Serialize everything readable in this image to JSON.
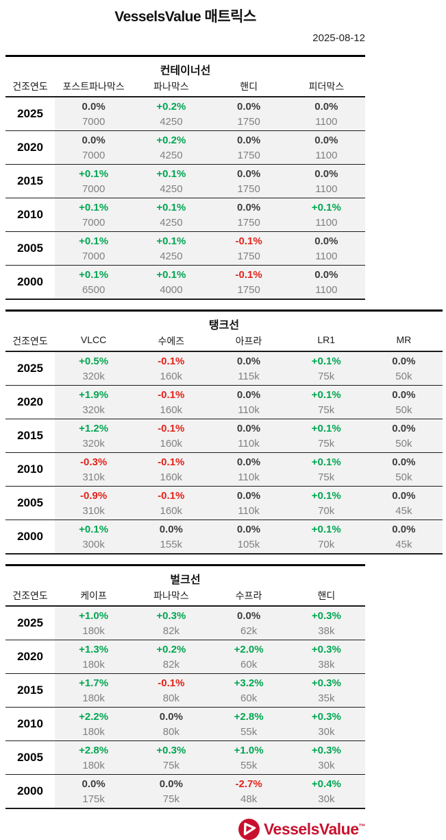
{
  "page": {
    "title": "VesselsValue 매트릭스",
    "date": "2025-08-12"
  },
  "colors": {
    "positive": "#00a651",
    "negative": "#e2231a",
    "neutral": "#3c3c3c",
    "value_gray": "#808080",
    "brand_red": "#c8102e",
    "cell_background": "#f2f2f2"
  },
  "year_column_header": "건조연도",
  "tables": [
    {
      "id": "container",
      "title": "컨테이너선",
      "columns": [
        "포스트파나막스",
        "파나막스",
        "핸디",
        "피더막스"
      ],
      "rows": [
        {
          "year": "2025",
          "cells": [
            {
              "pct": "0.0%",
              "value": "7000"
            },
            {
              "pct": "+0.2%",
              "value": "4250"
            },
            {
              "pct": "0.0%",
              "value": "1750"
            },
            {
              "pct": "0.0%",
              "value": "1100"
            }
          ]
        },
        {
          "year": "2020",
          "cells": [
            {
              "pct": "0.0%",
              "value": "7000"
            },
            {
              "pct": "+0.2%",
              "value": "4250"
            },
            {
              "pct": "0.0%",
              "value": "1750"
            },
            {
              "pct": "0.0%",
              "value": "1100"
            }
          ]
        },
        {
          "year": "2015",
          "cells": [
            {
              "pct": "+0.1%",
              "value": "7000"
            },
            {
              "pct": "+0.1%",
              "value": "4250"
            },
            {
              "pct": "0.0%",
              "value": "1750"
            },
            {
              "pct": "0.0%",
              "value": "1100"
            }
          ]
        },
        {
          "year": "2010",
          "cells": [
            {
              "pct": "+0.1%",
              "value": "7000"
            },
            {
              "pct": "+0.1%",
              "value": "4250"
            },
            {
              "pct": "0.0%",
              "value": "1750"
            },
            {
              "pct": "+0.1%",
              "value": "1100"
            }
          ]
        },
        {
          "year": "2005",
          "cells": [
            {
              "pct": "+0.1%",
              "value": "7000"
            },
            {
              "pct": "+0.1%",
              "value": "4250"
            },
            {
              "pct": "-0.1%",
              "value": "1750"
            },
            {
              "pct": "0.0%",
              "value": "1100"
            }
          ]
        },
        {
          "year": "2000",
          "cells": [
            {
              "pct": "+0.1%",
              "value": "6500"
            },
            {
              "pct": "+0.1%",
              "value": "4000"
            },
            {
              "pct": "-0.1%",
              "value": "1750"
            },
            {
              "pct": "0.0%",
              "value": "1100"
            }
          ]
        }
      ]
    },
    {
      "id": "tanker",
      "title": "탱크선",
      "columns": [
        "VLCC",
        "수에즈",
        "아프라",
        "LR1",
        "MR"
      ],
      "rows": [
        {
          "year": "2025",
          "cells": [
            {
              "pct": "+0.5%",
              "value": "320k"
            },
            {
              "pct": "-0.1%",
              "value": "160k"
            },
            {
              "pct": "0.0%",
              "value": "115k"
            },
            {
              "pct": "+0.1%",
              "value": "75k"
            },
            {
              "pct": "0.0%",
              "value": "50k"
            }
          ]
        },
        {
          "year": "2020",
          "cells": [
            {
              "pct": "+1.9%",
              "value": "320k"
            },
            {
              "pct": "-0.1%",
              "value": "160k"
            },
            {
              "pct": "0.0%",
              "value": "110k"
            },
            {
              "pct": "+0.1%",
              "value": "75k"
            },
            {
              "pct": "0.0%",
              "value": "50k"
            }
          ]
        },
        {
          "year": "2015",
          "cells": [
            {
              "pct": "+1.2%",
              "value": "320k"
            },
            {
              "pct": "-0.1%",
              "value": "160k"
            },
            {
              "pct": "0.0%",
              "value": "110k"
            },
            {
              "pct": "+0.1%",
              "value": "75k"
            },
            {
              "pct": "0.0%",
              "value": "50k"
            }
          ]
        },
        {
          "year": "2010",
          "cells": [
            {
              "pct": "-0.3%",
              "value": "310k"
            },
            {
              "pct": "-0.1%",
              "value": "160k"
            },
            {
              "pct": "0.0%",
              "value": "110k"
            },
            {
              "pct": "+0.1%",
              "value": "75k"
            },
            {
              "pct": "0.0%",
              "value": "50k"
            }
          ]
        },
        {
          "year": "2005",
          "cells": [
            {
              "pct": "-0.9%",
              "value": "310k"
            },
            {
              "pct": "-0.1%",
              "value": "160k"
            },
            {
              "pct": "0.0%",
              "value": "110k"
            },
            {
              "pct": "+0.1%",
              "value": "70k"
            },
            {
              "pct": "0.0%",
              "value": "45k"
            }
          ]
        },
        {
          "year": "2000",
          "cells": [
            {
              "pct": "+0.1%",
              "value": "300k"
            },
            {
              "pct": "0.0%",
              "value": "155k"
            },
            {
              "pct": "0.0%",
              "value": "105k"
            },
            {
              "pct": "+0.1%",
              "value": "70k"
            },
            {
              "pct": "0.0%",
              "value": "45k"
            }
          ]
        }
      ]
    },
    {
      "id": "bulker",
      "title": "벌크선",
      "columns": [
        "케이프",
        "파나막스",
        "수프라",
        "핸디"
      ],
      "rows": [
        {
          "year": "2025",
          "cells": [
            {
              "pct": "+1.0%",
              "value": "180k"
            },
            {
              "pct": "+0.3%",
              "value": "82k"
            },
            {
              "pct": "0.0%",
              "value": "62k"
            },
            {
              "pct": "+0.3%",
              "value": "38k"
            }
          ]
        },
        {
          "year": "2020",
          "cells": [
            {
              "pct": "+1.3%",
              "value": "180k"
            },
            {
              "pct": "+0.2%",
              "value": "82k"
            },
            {
              "pct": "+2.0%",
              "value": "60k"
            },
            {
              "pct": "+0.3%",
              "value": "38k"
            }
          ]
        },
        {
          "year": "2015",
          "cells": [
            {
              "pct": "+1.7%",
              "value": "180k"
            },
            {
              "pct": "-0.1%",
              "value": "80k"
            },
            {
              "pct": "+3.2%",
              "value": "60k"
            },
            {
              "pct": "+0.3%",
              "value": "35k"
            }
          ]
        },
        {
          "year": "2010",
          "cells": [
            {
              "pct": "+2.2%",
              "value": "180k"
            },
            {
              "pct": "0.0%",
              "value": "80k"
            },
            {
              "pct": "+2.8%",
              "value": "55k"
            },
            {
              "pct": "+0.3%",
              "value": "30k"
            }
          ]
        },
        {
          "year": "2005",
          "cells": [
            {
              "pct": "+2.8%",
              "value": "180k"
            },
            {
              "pct": "+0.3%",
              "value": "75k"
            },
            {
              "pct": "+1.0%",
              "value": "55k"
            },
            {
              "pct": "+0.3%",
              "value": "30k"
            }
          ]
        },
        {
          "year": "2000",
          "cells": [
            {
              "pct": "0.0%",
              "value": "175k"
            },
            {
              "pct": "0.0%",
              "value": "75k"
            },
            {
              "pct": "-2.7%",
              "value": "48k"
            },
            {
              "pct": "+0.4%",
              "value": "30k"
            }
          ]
        }
      ]
    }
  ],
  "footer": {
    "logo_text": "VesselsValue",
    "trademark": "™"
  }
}
